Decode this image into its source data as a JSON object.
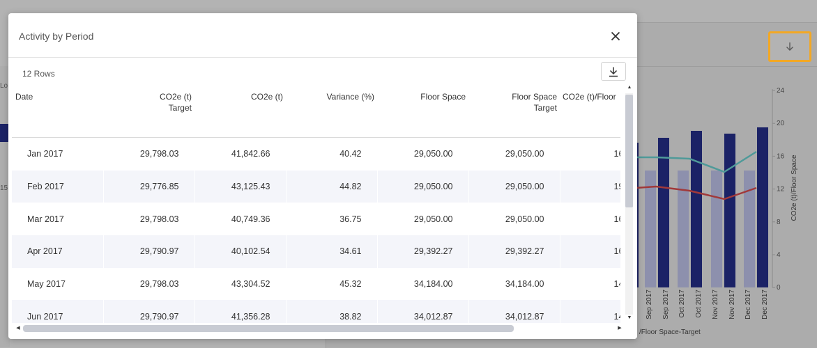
{
  "background": {
    "left_labels": [
      "Lo",
      "15"
    ],
    "legend_fragment": "/Floor Space-Target",
    "chart": {
      "y_axis_label": "CO2e (t)/Floor Space",
      "y_ticks": [
        "24",
        "20",
        "16",
        "12",
        "8",
        "4",
        "0"
      ],
      "x_labels": [
        "Sep 2017",
        "Sep 2017",
        "Oct 2017",
        "Oct 2017",
        "Nov 2017",
        "Nov 2017",
        "Dec 2017",
        "Dec 2017"
      ],
      "colors": {
        "target_bar": "#8d90ad",
        "actual_bar": "#1b2266",
        "line_teal": "#4f9a99",
        "line_red": "#a1393a"
      }
    }
  },
  "dialog": {
    "title": "Activity by Period",
    "row_count": "12 Rows",
    "columns": [
      "Date",
      "CO2e (t)\nTarget",
      "CO2e (t)",
      "Variance (%)",
      "Floor Space",
      "Floor Space\nTarget",
      "CO2e (t)/Floor"
    ],
    "rows": [
      [
        "Jan 2017",
        "29,798.03",
        "41,842.66",
        "40.42",
        "29,050.00",
        "29,050.00",
        "16"
      ],
      [
        "Feb 2017",
        "29,776.85",
        "43,125.43",
        "44.82",
        "29,050.00",
        "29,050.00",
        "19"
      ],
      [
        "Mar 2017",
        "29,798.03",
        "40,749.36",
        "36.75",
        "29,050.00",
        "29,050.00",
        "16"
      ],
      [
        "Apr 2017",
        "29,790.97",
        "40,102.54",
        "34.61",
        "29,392.27",
        "29,392.27",
        "16"
      ],
      [
        "May 2017",
        "29,798.03",
        "43,304.52",
        "45.32",
        "34,184.00",
        "34,184.00",
        "14"
      ],
      [
        "Jun 2017",
        "29,790.97",
        "41,356.28",
        "38.82",
        "34,012.87",
        "34,012.87",
        "14"
      ]
    ]
  }
}
